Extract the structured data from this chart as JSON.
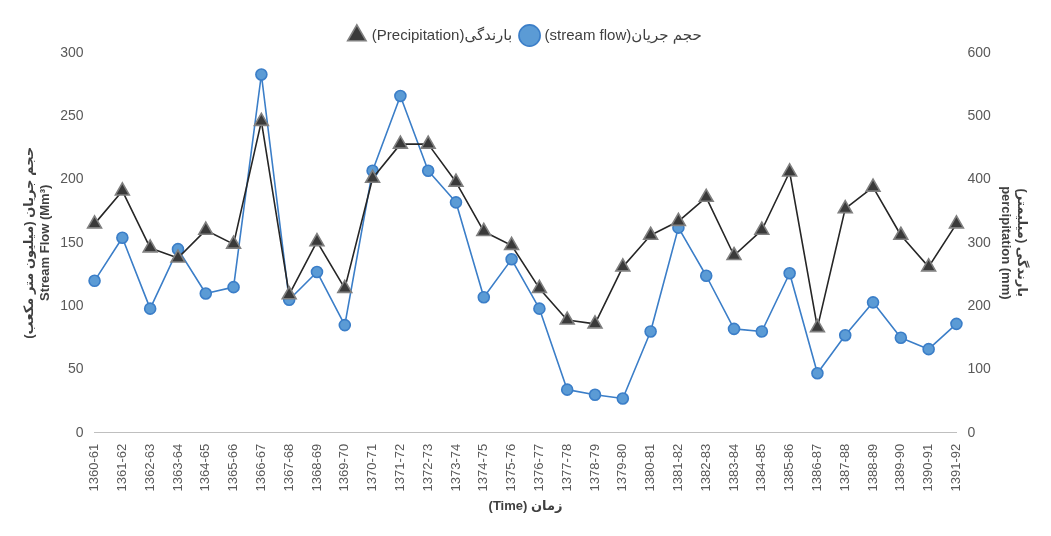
{
  "chart_data": {
    "type": "line",
    "xlabel": "(Time) زمان",
    "ylabel": "حجم جریان (میلیون متر مکعب)\nStream Flow (Mm³)",
    "y2label": "بارندگی (میلیمتر)\npercipitation (mm)",
    "categories": [
      "1360-61",
      "1361-62",
      "1362-63",
      "1363-64",
      "1364-65",
      "1365-66",
      "1366-67",
      "1367-68",
      "1368-69",
      "1369-70",
      "1370-71",
      "1371-72",
      "1372-73",
      "1373-74",
      "1374-75",
      "1375-76",
      "1376-77",
      "1377-78",
      "1378-79",
      "1379-80",
      "1380-81",
      "1381-82",
      "1382-83",
      "1383-84",
      "1384-85",
      "1385-86",
      "1386-87",
      "1387-88",
      "1388-89",
      "1389-90",
      "1390-91",
      "1391-92"
    ],
    "series": [
      {
        "name": "(stream flow)حجم جریان",
        "color": "#3b7ec8",
        "marker": "circle",
        "values": [
          120,
          154,
          98,
          145,
          110,
          115,
          283,
          105,
          127,
          85,
          207,
          266,
          207,
          182,
          107,
          137,
          98,
          34,
          30,
          27,
          80,
          162,
          124,
          82,
          80,
          126,
          47,
          77,
          103,
          75,
          66,
          86
        ]
      },
      {
        "name": "(Precipitation)بارندگی",
        "color": "#262626",
        "marker": "triangle",
        "axis": "y2",
        "values": [
          330,
          382,
          292,
          276,
          320,
          298,
          492,
          218,
          302,
          228,
          402,
          456,
          456,
          396,
          318,
          296,
          228,
          178,
          172,
          262,
          312,
          334,
          372,
          280,
          320,
          412,
          166,
          354,
          388,
          312,
          262,
          330
        ]
      }
    ],
    "ylim": [
      0,
      300
    ],
    "yticks": [
      0,
      50,
      100,
      150,
      200,
      250,
      300
    ],
    "y2lim": [
      0,
      600
    ],
    "y2ticks": [
      0,
      100,
      200,
      300,
      400,
      500,
      600
    ],
    "grid": false,
    "legend": "top",
    "line_style": "solid"
  }
}
